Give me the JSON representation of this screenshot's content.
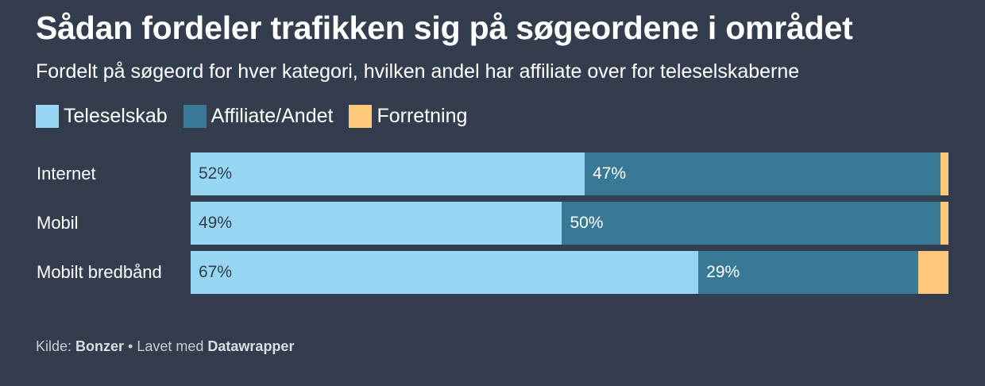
{
  "title": "Sådan fordeler trafikken sig på søgeordene i området",
  "subtitle": "Fordelt på søgeord for hver kategori, hvilken andel har affiliate over for teleselskaberne",
  "source": {
    "prefix": "Kilde: ",
    "name": "Bonzer",
    "separator": " • Lavet med ",
    "tool": "Datawrapper"
  },
  "colors": {
    "background": "#333d4e",
    "Teleselskab": "#96d6f3",
    "Affiliate/Andet": "#387a96",
    "Forretning": "#fec97a",
    "label_dark": "#333d4e",
    "label_light": "#ffffff"
  },
  "chart_data": {
    "type": "bar",
    "orientation": "horizontal",
    "stacked": true,
    "title": "Sådan fordeler trafikken sig på søgeordene i området",
    "subtitle": "Fordelt på søgeord for hver kategori, hvilken andel har affiliate over for teleselskaberne",
    "legend_position": "top-left",
    "xlim": [
      0,
      100
    ],
    "unit": "%",
    "categories": [
      "Internet",
      "Mobil",
      "Mobilt bredbånd"
    ],
    "series": [
      {
        "name": "Teleselskab",
        "values": [
          52,
          49,
          67
        ],
        "labels": [
          "52%",
          "49%",
          "67%"
        ]
      },
      {
        "name": "Affiliate/Andet",
        "values": [
          47,
          50,
          29
        ],
        "labels": [
          "47%",
          "50%",
          "29%"
        ]
      },
      {
        "name": "Forretning",
        "values": [
          1,
          1,
          4
        ],
        "labels": [
          "",
          "",
          ""
        ]
      }
    ]
  }
}
